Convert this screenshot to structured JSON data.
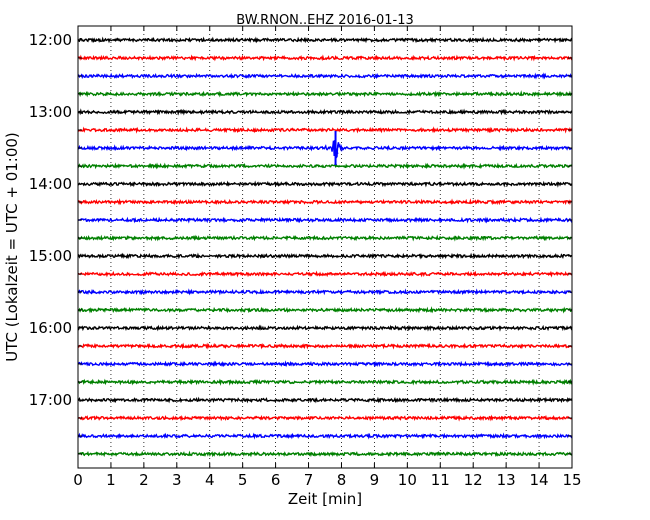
{
  "chart_data": {
    "type": "line",
    "title": "BW.RNON..EHZ 2016-01-13",
    "xlabel": "Zeit  [min]",
    "ylabel": "UTC (Lokalzeit = UTC + 01:00)",
    "xlim": [
      0,
      15
    ],
    "x_ticks": [
      0,
      1,
      2,
      3,
      4,
      5,
      6,
      7,
      8,
      9,
      10,
      11,
      12,
      13,
      14,
      15
    ],
    "x_tick_labels": [
      "0",
      "1",
      "2",
      "3",
      "4",
      "5",
      "6",
      "7",
      "8",
      "9",
      "10",
      "11",
      "12",
      "13",
      "14",
      "15"
    ],
    "y_tick_labels": [
      "12:00",
      "13:00",
      "14:00",
      "15:00",
      "16:00",
      "17:00"
    ],
    "grid": "vertical-dotted",
    "trace_minutes": 15,
    "colors": [
      "#000000",
      "#ff0000",
      "#0000ff",
      "#008000"
    ],
    "traces": [
      {
        "start": "12:00",
        "color": "#000000"
      },
      {
        "start": "12:15",
        "color": "#ff0000"
      },
      {
        "start": "12:30",
        "color": "#0000ff"
      },
      {
        "start": "12:45",
        "color": "#008000"
      },
      {
        "start": "13:00",
        "color": "#000000"
      },
      {
        "start": "13:15",
        "color": "#ff0000"
      },
      {
        "start": "13:30",
        "color": "#0000ff"
      },
      {
        "start": "13:45",
        "color": "#008000"
      },
      {
        "start": "14:00",
        "color": "#000000"
      },
      {
        "start": "14:15",
        "color": "#ff0000"
      },
      {
        "start": "14:30",
        "color": "#0000ff"
      },
      {
        "start": "14:45",
        "color": "#008000"
      },
      {
        "start": "15:00",
        "color": "#000000"
      },
      {
        "start": "15:15",
        "color": "#ff0000"
      },
      {
        "start": "15:30",
        "color": "#0000ff"
      },
      {
        "start": "15:45",
        "color": "#008000"
      },
      {
        "start": "16:00",
        "color": "#000000"
      },
      {
        "start": "16:15",
        "color": "#ff0000"
      },
      {
        "start": "16:30",
        "color": "#0000ff"
      },
      {
        "start": "16:45",
        "color": "#008000"
      },
      {
        "start": "17:00",
        "color": "#000000"
      },
      {
        "start": "17:15",
        "color": "#ff0000"
      },
      {
        "start": "17:30",
        "color": "#0000ff"
      },
      {
        "start": "17:45",
        "color": "#008000"
      }
    ],
    "events": [
      {
        "trace_start": "13:30",
        "minute": 7.82,
        "amplitude": "large"
      }
    ]
  }
}
